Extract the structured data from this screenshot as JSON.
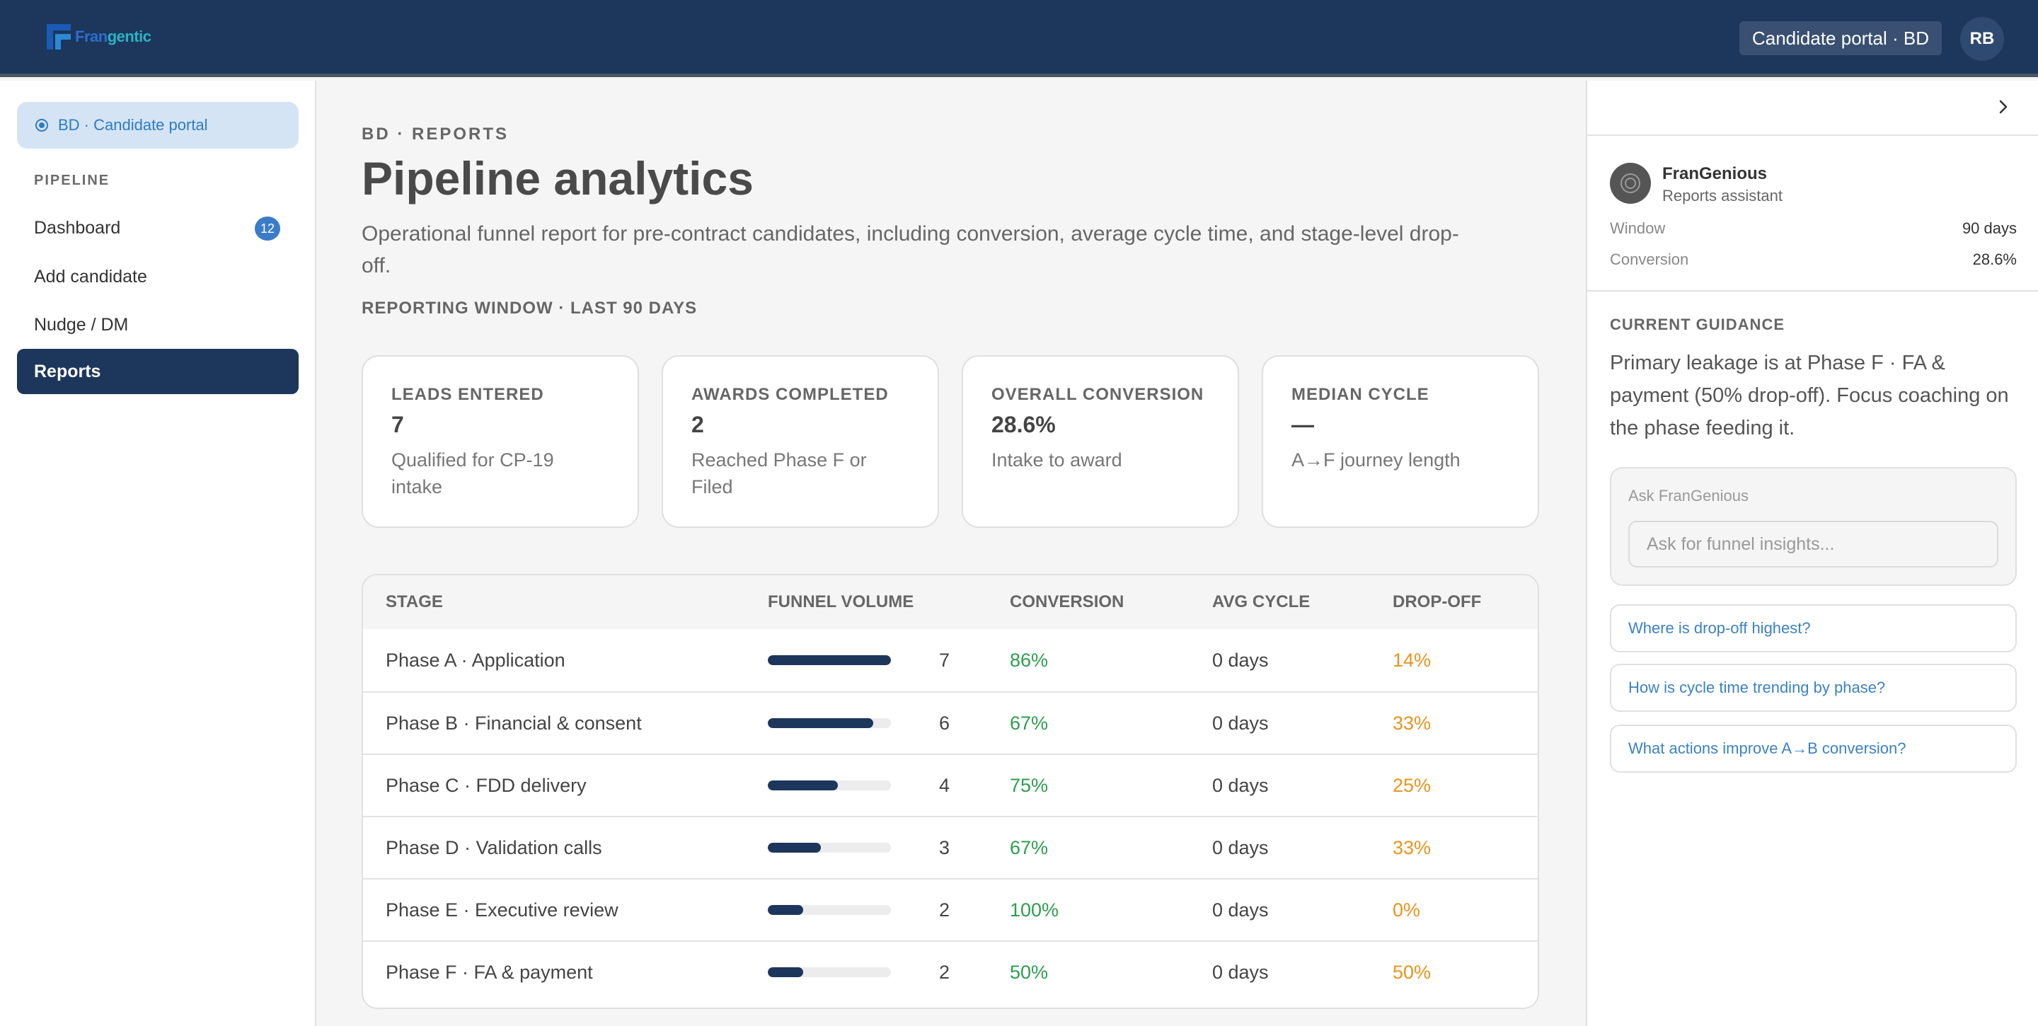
{
  "header": {
    "logo_part1": "Fran",
    "logo_part2": "gentic",
    "portal_chip": "Candidate portal · BD",
    "avatar_initials": "RB"
  },
  "sidebar": {
    "portal_pill": "BD · Candidate portal",
    "section_label": "PIPELINE",
    "items": [
      {
        "label": "Dashboard",
        "badge": "12"
      },
      {
        "label": "Add candidate"
      },
      {
        "label": "Nudge / DM"
      },
      {
        "label": "Reports",
        "active": true
      }
    ]
  },
  "main": {
    "eyebrow": "BD · REPORTS",
    "title": "Pipeline analytics",
    "subtitle": "Operational funnel report for pre-contract candidates, including conversion, average cycle time, and stage-level drop-off.",
    "window_label": "REPORTING WINDOW · LAST 90 DAYS",
    "kpis": [
      {
        "label": "LEADS ENTERED",
        "value": "7",
        "desc": "Qualified for CP-19 intake"
      },
      {
        "label": "AWARDS COMPLETED",
        "value": "2",
        "desc": "Reached Phase F or Filed"
      },
      {
        "label": "OVERALL CONVERSION",
        "value": "28.6%",
        "desc": "Intake to award"
      },
      {
        "label": "MEDIAN CYCLE",
        "value": "—",
        "desc": "A→F journey length"
      }
    ],
    "table": {
      "columns": [
        "STAGE",
        "FUNNEL VOLUME",
        "CONVERSION",
        "AVG CYCLE",
        "DROP-OFF"
      ],
      "max_volume": 7,
      "rows": [
        {
          "stage": "Phase A · Application",
          "volume": 7,
          "volume_text": "7",
          "conversion": "86%",
          "cycle": "0 days",
          "dropoff": "14%"
        },
        {
          "stage": "Phase B · Financial & consent",
          "volume": 6,
          "volume_text": "6",
          "conversion": "67%",
          "cycle": "0 days",
          "dropoff": "33%"
        },
        {
          "stage": "Phase C · FDD delivery",
          "volume": 4,
          "volume_text": "4",
          "conversion": "75%",
          "cycle": "0 days",
          "dropoff": "25%"
        },
        {
          "stage": "Phase D · Validation calls",
          "volume": 3,
          "volume_text": "3",
          "conversion": "67%",
          "cycle": "0 days",
          "dropoff": "33%"
        },
        {
          "stage": "Phase E · Executive review",
          "volume": 2,
          "volume_text": "2",
          "conversion": "100%",
          "cycle": "0 days",
          "dropoff": "0%"
        },
        {
          "stage": "Phase F · FA & payment",
          "volume": 2,
          "volume_text": "2",
          "conversion": "50%",
          "cycle": "0 days",
          "dropoff": "50%"
        }
      ]
    }
  },
  "assistant": {
    "name": "FranGenious",
    "role": "Reports assistant",
    "window_key": "Window",
    "window_value": "90 days",
    "conversion_key": "Conversion",
    "conversion_value": "28.6%",
    "guidance_label": "CURRENT GUIDANCE",
    "guidance_text": "Primary leakage is at Phase F · FA & payment (50% drop-off). Focus coaching on the phase feeding it.",
    "ask_label": "Ask FranGenious",
    "ask_placeholder": "Ask for funnel insights...",
    "suggestions": [
      "Where is drop-off highest?",
      "How is cycle time trending by phase?",
      "What actions improve A→B conversion?"
    ]
  },
  "colors": {
    "navy": "#1d365b",
    "accent_blue": "#3b82c4",
    "positive_green": "#2e9e4e",
    "dropoff_orange": "#e8941e"
  }
}
